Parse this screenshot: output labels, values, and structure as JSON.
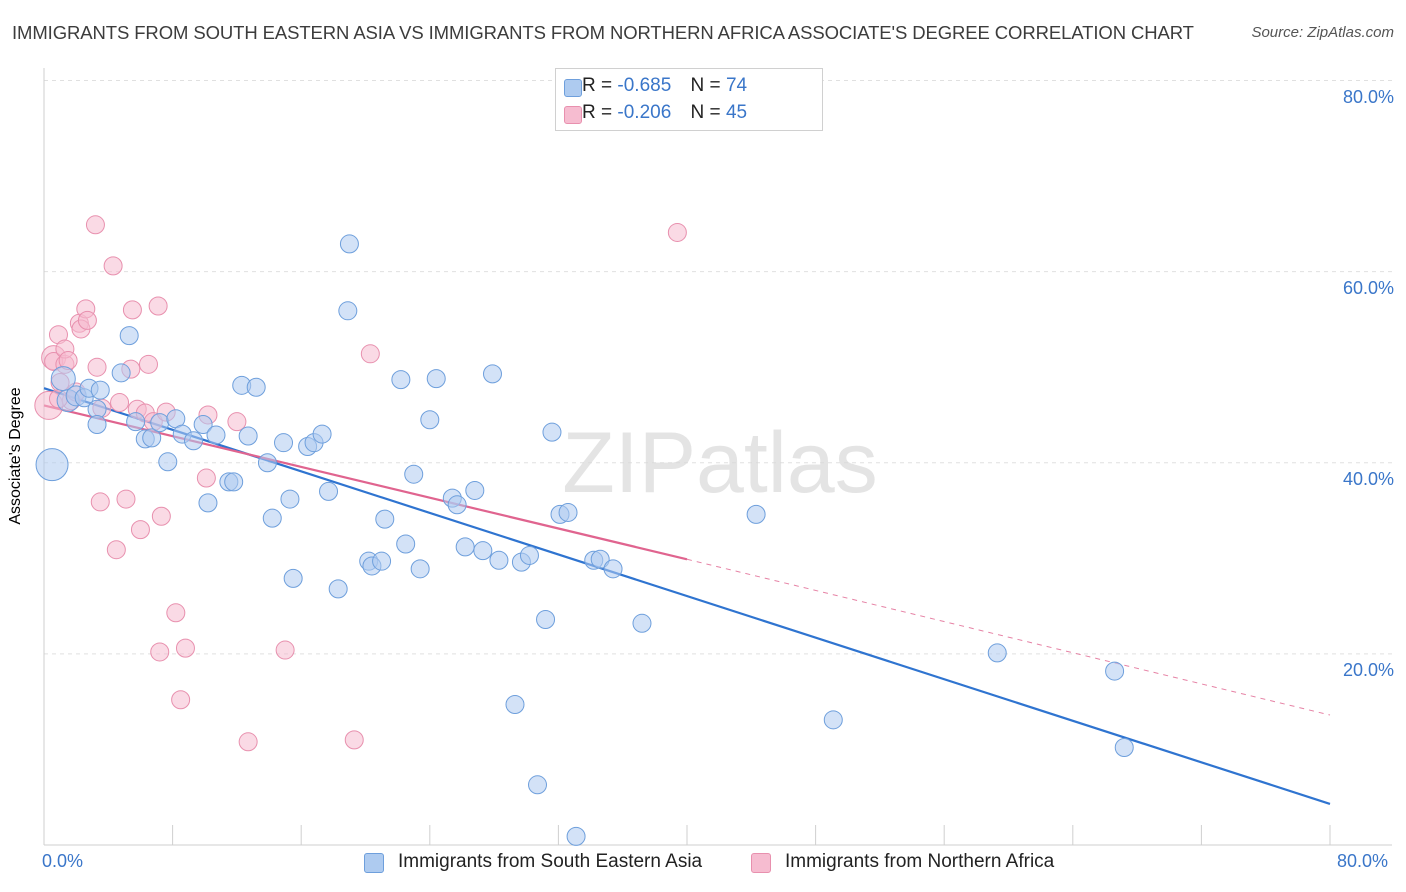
{
  "title": "IMMIGRANTS FROM SOUTH EASTERN ASIA VS IMMIGRANTS FROM NORTHERN AFRICA ASSOCIATE'S DEGREE CORRELATION CHART",
  "source": "Source: ZipAtlas.com",
  "watermark": "ZIPatlas",
  "legend": {
    "series1": {
      "r_label": "R =",
      "r_value": "-0.685",
      "n_label": "N =",
      "n_value": "74"
    },
    "series2": {
      "r_label": "R =",
      "r_value": "-0.206",
      "n_label": "N =",
      "n_value": "45"
    }
  },
  "colors": {
    "blue_fill": "#aecbf0",
    "blue_stroke": "#6e9fdc",
    "blue_line": "#2f74d0",
    "pink_fill": "#f6bcd0",
    "pink_stroke": "#e890ae",
    "pink_line": "#e0648f",
    "grid": "#e0e0e0",
    "tick_text": "#3a76c9"
  },
  "chart_data": {
    "type": "scatter",
    "ylabel": "Associate's Degree",
    "xlim": [
      0,
      80
    ],
    "ylim": [
      0,
      80
    ],
    "x_ticks": [
      "0.0%",
      "80.0%"
    ],
    "y_ticks": [
      "20.0%",
      "40.0%",
      "60.0%",
      "80.0%"
    ],
    "y_tick_values": [
      20,
      40,
      60,
      80
    ],
    "grid": true,
    "legend_position": "top-center",
    "series": [
      {
        "name": "Immigrants from South Eastern Asia",
        "color": "#6e9fdc",
        "points": [
          [
            0.5,
            39.8,
            16
          ],
          [
            1.2,
            48.8,
            12
          ],
          [
            1.5,
            46.5,
            11
          ],
          [
            2.0,
            47.0,
            10
          ],
          [
            2.5,
            46.8,
            9
          ],
          [
            2.8,
            47.8,
            9
          ],
          [
            3.3,
            45.6,
            9
          ],
          [
            3.3,
            44.0,
            9
          ],
          [
            3.5,
            47.6,
            9
          ],
          [
            4.8,
            49.4,
            9
          ],
          [
            5.3,
            53.3,
            9
          ],
          [
            5.7,
            44.3,
            9
          ],
          [
            6.3,
            42.5,
            9
          ],
          [
            6.7,
            42.6,
            9
          ],
          [
            7.2,
            44.2,
            9
          ],
          [
            7.7,
            40.1,
            9
          ],
          [
            8.2,
            44.6,
            9
          ],
          [
            8.6,
            43.0,
            9
          ],
          [
            9.3,
            42.3,
            9
          ],
          [
            9.9,
            44.0,
            9
          ],
          [
            10.2,
            35.8,
            9
          ],
          [
            10.7,
            42.9,
            9
          ],
          [
            11.5,
            38.0,
            9
          ],
          [
            11.8,
            38.0,
            9
          ],
          [
            12.7,
            42.8,
            9
          ],
          [
            12.3,
            48.1,
            9
          ],
          [
            13.2,
            47.9,
            9
          ],
          [
            13.9,
            40.0,
            9
          ],
          [
            14.2,
            34.2,
            9
          ],
          [
            14.9,
            42.1,
            9
          ],
          [
            15.3,
            36.2,
            9
          ],
          [
            15.5,
            27.9,
            9
          ],
          [
            16.4,
            41.7,
            9
          ],
          [
            16.8,
            42.1,
            9
          ],
          [
            17.3,
            43.0,
            9
          ],
          [
            17.7,
            37.0,
            9
          ],
          [
            18.3,
            26.8,
            9
          ],
          [
            18.9,
            55.9,
            9
          ],
          [
            19.0,
            62.9,
            9
          ],
          [
            20.2,
            29.7,
            9
          ],
          [
            20.4,
            29.2,
            9
          ],
          [
            21.0,
            29.7,
            9
          ],
          [
            21.2,
            34.1,
            9
          ],
          [
            22.2,
            48.7,
            9
          ],
          [
            22.5,
            31.5,
            9
          ],
          [
            23.0,
            38.8,
            9
          ],
          [
            23.4,
            28.9,
            9
          ],
          [
            24.0,
            44.5,
            9
          ],
          [
            24.4,
            48.8,
            9
          ],
          [
            25.4,
            36.3,
            9
          ],
          [
            25.7,
            35.6,
            9
          ],
          [
            26.2,
            31.2,
            9
          ],
          [
            26.8,
            37.1,
            9
          ],
          [
            27.3,
            30.8,
            9
          ],
          [
            27.9,
            49.3,
            9
          ],
          [
            28.3,
            29.8,
            9
          ],
          [
            29.3,
            14.7,
            9
          ],
          [
            29.7,
            29.6,
            9
          ],
          [
            30.2,
            30.3,
            9
          ],
          [
            30.7,
            6.3,
            9
          ],
          [
            31.2,
            23.6,
            9
          ],
          [
            31.6,
            43.2,
            9
          ],
          [
            32.1,
            34.6,
            9
          ],
          [
            32.6,
            34.8,
            9
          ],
          [
            33.1,
            0.9,
            9
          ],
          [
            34.2,
            29.8,
            9
          ],
          [
            34.6,
            29.9,
            9
          ],
          [
            35.4,
            28.9,
            9
          ],
          [
            37.2,
            23.2,
            9
          ],
          [
            44.3,
            34.6,
            9
          ],
          [
            49.1,
            13.1,
            9
          ],
          [
            59.3,
            20.1,
            9
          ],
          [
            66.6,
            18.2,
            9
          ],
          [
            67.2,
            10.2,
            9
          ]
        ]
      },
      {
        "name": "Immigrants from Northern Africa",
        "color": "#e890ae",
        "points": [
          [
            0.3,
            46.0,
            14
          ],
          [
            0.6,
            51.0,
            12
          ],
          [
            0.6,
            50.6,
            9
          ],
          [
            0.9,
            53.4,
            9
          ],
          [
            1.0,
            48.4,
            9
          ],
          [
            1.3,
            50.3,
            9
          ],
          [
            1.3,
            51.9,
            9
          ],
          [
            1.5,
            50.7,
            9
          ],
          [
            1.7,
            46.5,
            9
          ],
          [
            2.0,
            47.4,
            9
          ],
          [
            2.2,
            54.6,
            9
          ],
          [
            2.3,
            54.0,
            9
          ],
          [
            2.6,
            56.1,
            9
          ],
          [
            2.7,
            54.9,
            9
          ],
          [
            3.2,
            64.9,
            9
          ],
          [
            3.3,
            50.0,
            9
          ],
          [
            3.5,
            35.9,
            9
          ],
          [
            3.6,
            45.7,
            9
          ],
          [
            4.3,
            60.6,
            9
          ],
          [
            4.5,
            30.9,
            9
          ],
          [
            4.7,
            46.3,
            9
          ],
          [
            5.1,
            36.2,
            9
          ],
          [
            5.4,
            49.8,
            9
          ],
          [
            5.5,
            56.0,
            9
          ],
          [
            5.8,
            45.6,
            9
          ],
          [
            6.0,
            33.0,
            9
          ],
          [
            6.3,
            45.2,
            9
          ],
          [
            6.5,
            50.3,
            9
          ],
          [
            6.8,
            44.3,
            9
          ],
          [
            7.1,
            56.4,
            9
          ],
          [
            7.2,
            20.2,
            9
          ],
          [
            7.3,
            34.4,
            9
          ],
          [
            7.6,
            45.3,
            9
          ],
          [
            8.2,
            24.3,
            9
          ],
          [
            8.5,
            15.2,
            9
          ],
          [
            8.8,
            20.6,
            9
          ],
          [
            10.1,
            38.4,
            9
          ],
          [
            10.2,
            45.0,
            9
          ],
          [
            12.0,
            44.3,
            9
          ],
          [
            12.7,
            10.8,
            9
          ],
          [
            15.0,
            20.4,
            9
          ],
          [
            19.3,
            11.0,
            9
          ],
          [
            20.3,
            51.4,
            9
          ],
          [
            39.4,
            64.1,
            9
          ],
          [
            0.9,
            46.7,
            9
          ]
        ]
      }
    ],
    "trend_lines": [
      {
        "series": "Immigrants from South Eastern Asia",
        "from": [
          0,
          47.8
        ],
        "to": [
          80,
          4.3
        ],
        "dashed_from": null
      },
      {
        "series": "Immigrants from Northern Africa",
        "from": [
          0,
          46.0
        ],
        "solid_to": [
          40,
          29.9
        ],
        "to": [
          80,
          13.6
        ]
      }
    ]
  }
}
